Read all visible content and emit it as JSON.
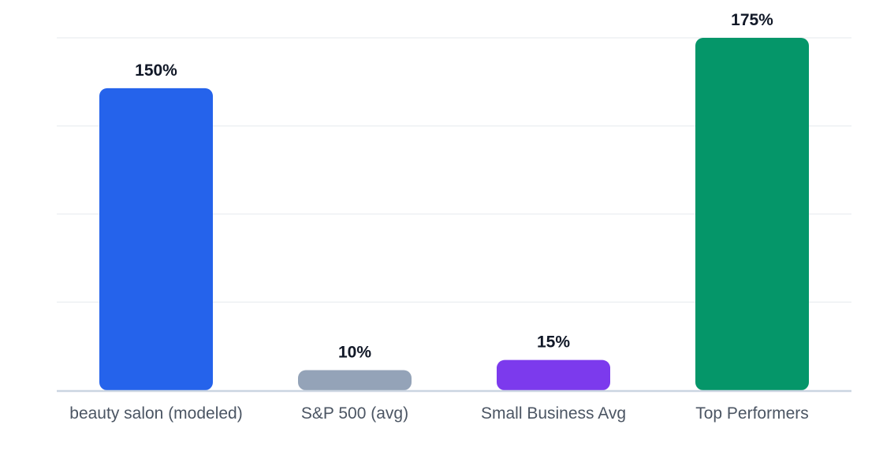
{
  "chart_data": {
    "type": "bar",
    "categories": [
      "beauty salon (modeled)",
      "S&P 500 (avg)",
      "Small Business Avg",
      "Top Performers"
    ],
    "values": [
      150,
      10,
      15,
      175
    ],
    "data_labels": [
      "150%",
      "10%",
      "15%",
      "175%"
    ],
    "colors": [
      "#2563eb",
      "#94a3b8",
      "#7c3aed",
      "#059669"
    ],
    "ylim": [
      0,
      175
    ],
    "grid": true,
    "title": "",
    "xlabel": "",
    "ylabel": ""
  },
  "style": {
    "grid_color": "#eef0f3",
    "baseline_color": "#cbd5e1"
  }
}
